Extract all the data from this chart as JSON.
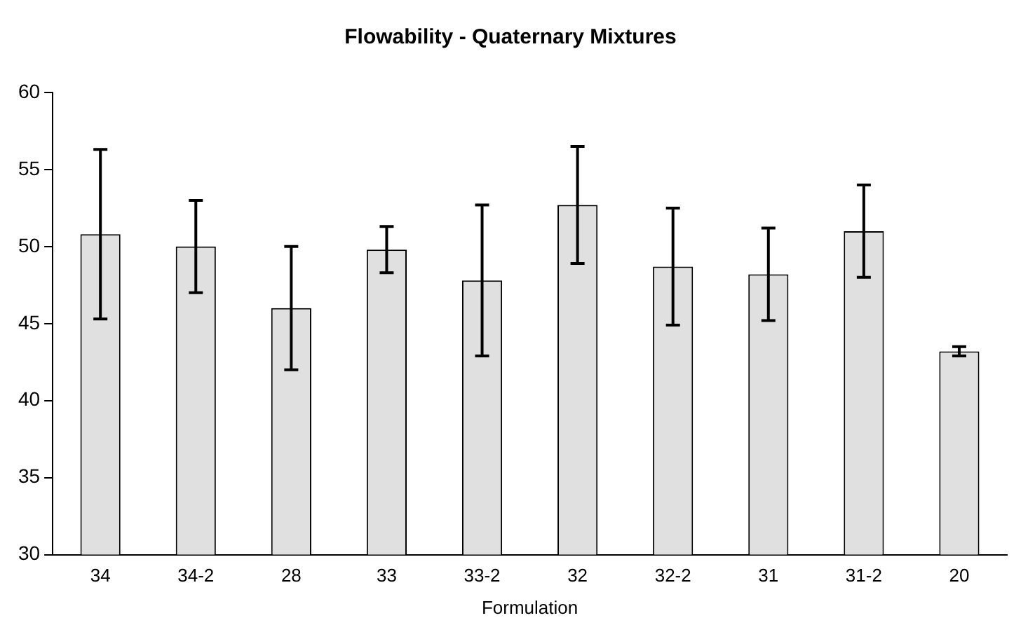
{
  "chart_data": {
    "type": "bar",
    "title": "Flowability - Quaternary Mixtures",
    "xlabel": "Formulation",
    "categories": [
      "34",
      "34-2",
      "28",
      "33",
      "33-2",
      "32",
      "32-2",
      "31",
      "31-2",
      "20"
    ],
    "values": [
      50.8,
      50.0,
      46.0,
      49.8,
      47.8,
      52.7,
      48.7,
      48.2,
      51.0,
      43.2
    ],
    "errors": [
      5.5,
      3.0,
      4.0,
      1.5,
      4.9,
      3.8,
      3.8,
      3.0,
      3.0,
      0.3
    ],
    "color": "#e0e0e0",
    "ylim": [
      30,
      60
    ],
    "yticks": [
      30,
      35,
      40,
      45,
      50,
      55,
      60
    ],
    "grid": false,
    "legend": false
  }
}
